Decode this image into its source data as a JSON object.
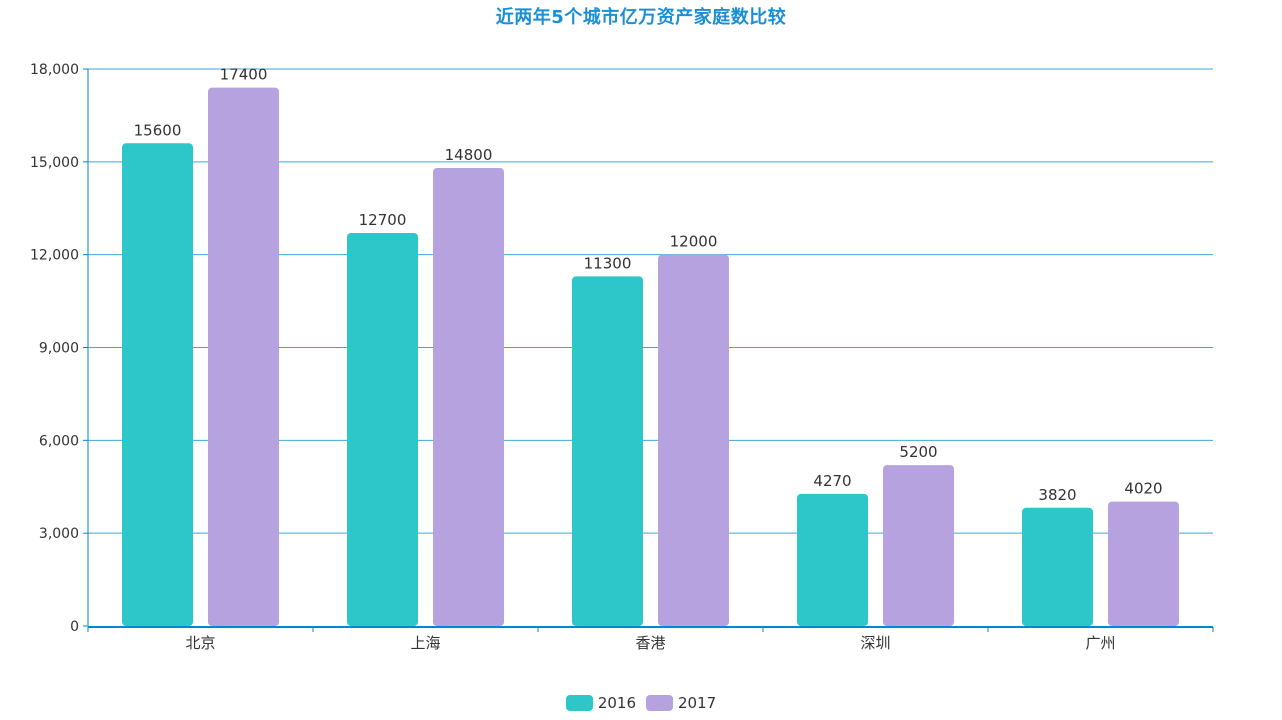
{
  "chart_data": {
    "type": "bar",
    "title": "近两年5个城市亿万资产家庭数比较",
    "categories": [
      "北京",
      "上海",
      "香港",
      "深圳",
      "广州"
    ],
    "series": [
      {
        "name": "2016",
        "values": [
          15600,
          12700,
          11300,
          4270,
          3820
        ],
        "color": "#2ec7c9"
      },
      {
        "name": "2017",
        "values": [
          17400,
          14800,
          12000,
          5200,
          4020
        ],
        "color": "#b6a2de"
      }
    ],
    "ylim": [
      0,
      18000
    ],
    "yticks": [
      0,
      3000,
      6000,
      9000,
      12000,
      15000,
      18000
    ],
    "ytick_labels": [
      "0",
      "3,000",
      "6,000",
      "9,000",
      "12,000",
      "15,000",
      "18,000"
    ],
    "grid": true,
    "legend_position": "bottom-center",
    "axis_color": "#008acd"
  }
}
